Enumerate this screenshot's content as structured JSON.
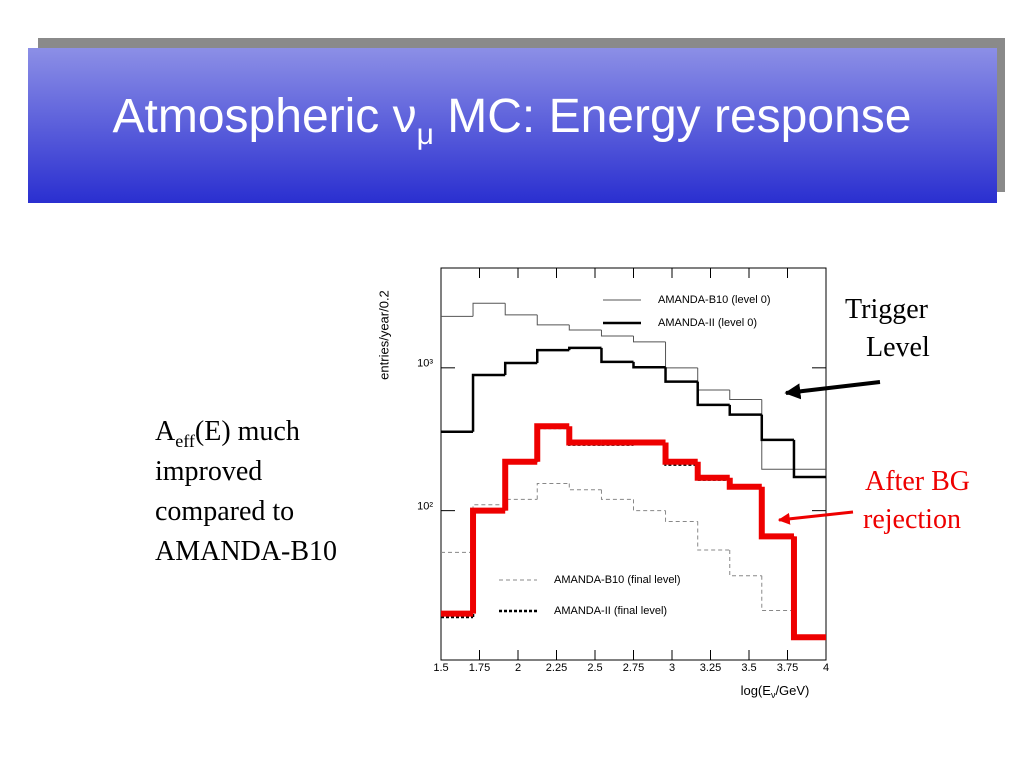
{
  "chart_data": {
    "type": "histogram",
    "title": "Atmospheric ν",
    "title_sub": "μ",
    "title_rest": " MC: Energy response",
    "y_label": "entries/year/0.2",
    "x_label": "log(E",
    "x_label_sub": "ν",
    "x_label_rest": "/GeV)",
    "bins": [
      1.5,
      1.708,
      1.917,
      2.125,
      2.333,
      2.542,
      2.75,
      2.958,
      3.167,
      3.375,
      3.583,
      3.792,
      4.0
    ],
    "series": [
      {
        "name": "AMANDA-B10 (level 0)",
        "color": "#555555",
        "style": "thin",
        "values": [
          2290,
          2830,
          2350,
          2000,
          1840,
          1670,
          1520,
          1000,
          700,
          600,
          195,
          195
        ]
      },
      {
        "name": "AMANDA-II (level 0)",
        "color": "#000000",
        "style": "thick",
        "values": [
          357,
          890,
          1080,
          1330,
          1380,
          1100,
          1010,
          800,
          550,
          470,
          313,
          172
        ]
      },
      {
        "name": "AMANDA-B10 (final level)",
        "color": "#888888",
        "style": "dashed",
        "values": [
          51,
          110,
          120,
          155,
          140,
          120,
          100,
          84,
          53,
          35,
          20,
          13
        ]
      },
      {
        "name": "AMANDA-II (final level)",
        "color": "#000000",
        "style": "dotted",
        "values": [
          18,
          100,
          220,
          380,
          290,
          290,
          300,
          210,
          165,
          145,
          66,
          13
        ]
      },
      {
        "name": "After BG rejection",
        "color": "#ee0000",
        "style": "bold",
        "values": [
          19,
          100,
          220,
          390,
          300,
          300,
          300,
          220,
          170,
          147,
          66,
          13
        ]
      }
    ],
    "xlim": [
      1.5,
      4
    ],
    "xticks": [
      1.5,
      1.75,
      2,
      2.25,
      2.5,
      2.75,
      3,
      3.25,
      3.5,
      3.75,
      4
    ],
    "ylim": [
      9,
      5000
    ],
    "yticks": [
      {
        "value": 100,
        "label": "10²"
      },
      {
        "value": 1000,
        "label": "10³"
      }
    ],
    "log_y": true,
    "annotations": {
      "trigger": [
        "Trigger",
        "Level"
      ],
      "bg": [
        "After BG",
        "rejection"
      ],
      "left": {
        "a": "A",
        "sub": "eff",
        "rest": "(E) much",
        "lines": [
          "improved",
          "compared to",
          "AMANDA-B10"
        ]
      }
    }
  }
}
